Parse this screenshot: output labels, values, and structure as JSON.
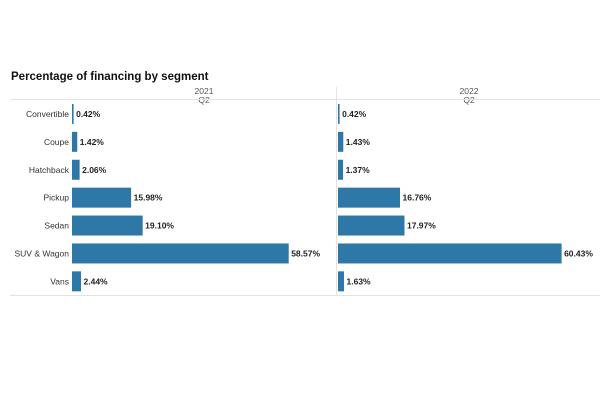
{
  "chart_data": {
    "type": "bar",
    "orientation": "horizontal",
    "title": "Percentage of financing by segment",
    "categories": [
      "Convertible",
      "Coupe",
      "Hatchback",
      "Pickup",
      "Sedan",
      "SUV & Wagon",
      "Vans"
    ],
    "panels": [
      {
        "year": "2021",
        "quarter": "Q2",
        "values": [
          0.42,
          1.42,
          2.06,
          15.98,
          19.1,
          58.57,
          2.44
        ],
        "labels": [
          "0.42%",
          "1.42%",
          "2.06%",
          "15.98%",
          "19.10%",
          "58.57%",
          "2.44%"
        ]
      },
      {
        "year": "2022",
        "quarter": "Q2",
        "values": [
          0.42,
          1.43,
          1.37,
          16.76,
          17.97,
          60.43,
          1.63
        ],
        "labels": [
          "0.42%",
          "1.43%",
          "1.37%",
          "16.76%",
          "17.97%",
          "60.43%",
          "1.63%"
        ]
      }
    ],
    "bar_color": "#2e78a8",
    "grid": false,
    "legend": "none"
  }
}
